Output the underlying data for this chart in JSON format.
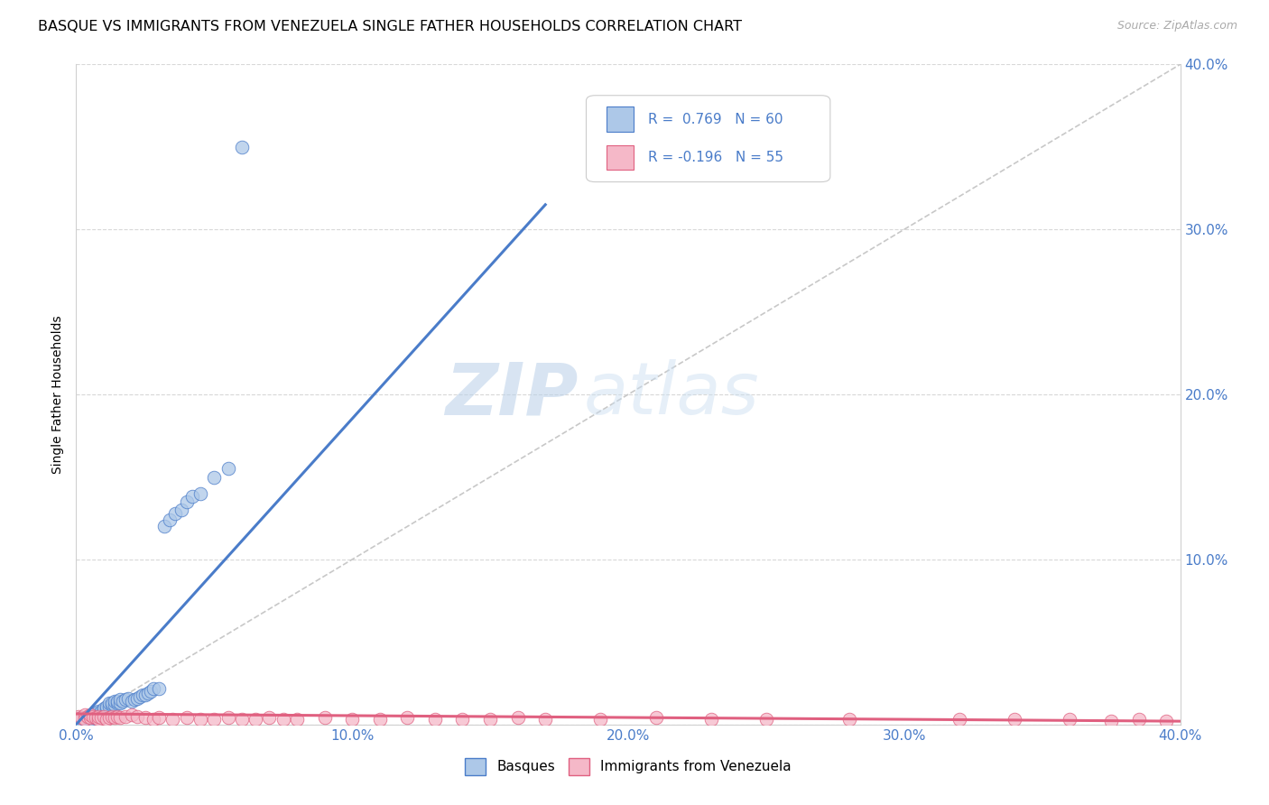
{
  "title": "BASQUE VS IMMIGRANTS FROM VENEZUELA SINGLE FATHER HOUSEHOLDS CORRELATION CHART",
  "source": "Source: ZipAtlas.com",
  "ylabel": "Single Father Households",
  "xlim": [
    0.0,
    0.4
  ],
  "ylim": [
    0.0,
    0.4
  ],
  "xtick_vals": [
    0.0,
    0.1,
    0.2,
    0.3,
    0.4
  ],
  "ytick_vals": [
    0.0,
    0.1,
    0.2,
    0.3,
    0.4
  ],
  "color_blue": "#adc8e8",
  "color_pink": "#f5b8c8",
  "line_blue": "#4a7cc9",
  "line_pink": "#e06080",
  "line_diag_color": "#c8c8c8",
  "watermark_zip": "ZIP",
  "watermark_atlas": "atlas",
  "title_fontsize": 11.5,
  "source_fontsize": 9,
  "basques_x": [
    0.001,
    0.001,
    0.002,
    0.002,
    0.003,
    0.003,
    0.003,
    0.004,
    0.004,
    0.005,
    0.005,
    0.005,
    0.006,
    0.006,
    0.006,
    0.007,
    0.007,
    0.007,
    0.008,
    0.008,
    0.008,
    0.009,
    0.009,
    0.01,
    0.01,
    0.011,
    0.011,
    0.012,
    0.012,
    0.013,
    0.013,
    0.014,
    0.014,
    0.015,
    0.015,
    0.016,
    0.016,
    0.017,
    0.018,
    0.019,
    0.02,
    0.021,
    0.022,
    0.023,
    0.024,
    0.025,
    0.026,
    0.027,
    0.028,
    0.03,
    0.032,
    0.034,
    0.036,
    0.038,
    0.04,
    0.042,
    0.045,
    0.05,
    0.055,
    0.06
  ],
  "basques_y": [
    0.002,
    0.003,
    0.002,
    0.004,
    0.003,
    0.004,
    0.003,
    0.005,
    0.004,
    0.004,
    0.005,
    0.003,
    0.004,
    0.006,
    0.005,
    0.006,
    0.007,
    0.005,
    0.006,
    0.007,
    0.008,
    0.007,
    0.008,
    0.009,
    0.01,
    0.01,
    0.011,
    0.011,
    0.013,
    0.012,
    0.013,
    0.012,
    0.014,
    0.013,
    0.014,
    0.013,
    0.015,
    0.014,
    0.015,
    0.016,
    0.014,
    0.015,
    0.016,
    0.017,
    0.018,
    0.018,
    0.019,
    0.02,
    0.022,
    0.022,
    0.12,
    0.124,
    0.128,
    0.13,
    0.135,
    0.138,
    0.14,
    0.15,
    0.155,
    0.35
  ],
  "venezuela_x": [
    0.001,
    0.002,
    0.003,
    0.003,
    0.004,
    0.005,
    0.005,
    0.006,
    0.007,
    0.008,
    0.008,
    0.009,
    0.01,
    0.011,
    0.012,
    0.013,
    0.014,
    0.015,
    0.016,
    0.018,
    0.02,
    0.022,
    0.025,
    0.028,
    0.03,
    0.035,
    0.04,
    0.045,
    0.05,
    0.055,
    0.06,
    0.065,
    0.07,
    0.075,
    0.08,
    0.09,
    0.1,
    0.11,
    0.12,
    0.13,
    0.14,
    0.15,
    0.16,
    0.17,
    0.19,
    0.21,
    0.23,
    0.25,
    0.28,
    0.32,
    0.34,
    0.36,
    0.375,
    0.385,
    0.395
  ],
  "venezuela_y": [
    0.005,
    0.004,
    0.006,
    0.003,
    0.005,
    0.004,
    0.006,
    0.005,
    0.004,
    0.003,
    0.005,
    0.004,
    0.005,
    0.003,
    0.004,
    0.005,
    0.004,
    0.005,
    0.004,
    0.005,
    0.006,
    0.005,
    0.004,
    0.003,
    0.004,
    0.003,
    0.004,
    0.003,
    0.003,
    0.004,
    0.003,
    0.003,
    0.004,
    0.003,
    0.003,
    0.004,
    0.003,
    0.003,
    0.004,
    0.003,
    0.003,
    0.003,
    0.004,
    0.003,
    0.003,
    0.004,
    0.003,
    0.003,
    0.003,
    0.003,
    0.003,
    0.003,
    0.002,
    0.003,
    0.002
  ],
  "blue_regression": [
    0.0,
    0.0,
    0.17,
    0.315
  ],
  "pink_regression": [
    0.0,
    0.0065,
    0.4,
    0.002
  ],
  "legend_r1_val": "0.769",
  "legend_r1_n": "60",
  "legend_r2_val": "-0.196",
  "legend_r2_n": "55"
}
